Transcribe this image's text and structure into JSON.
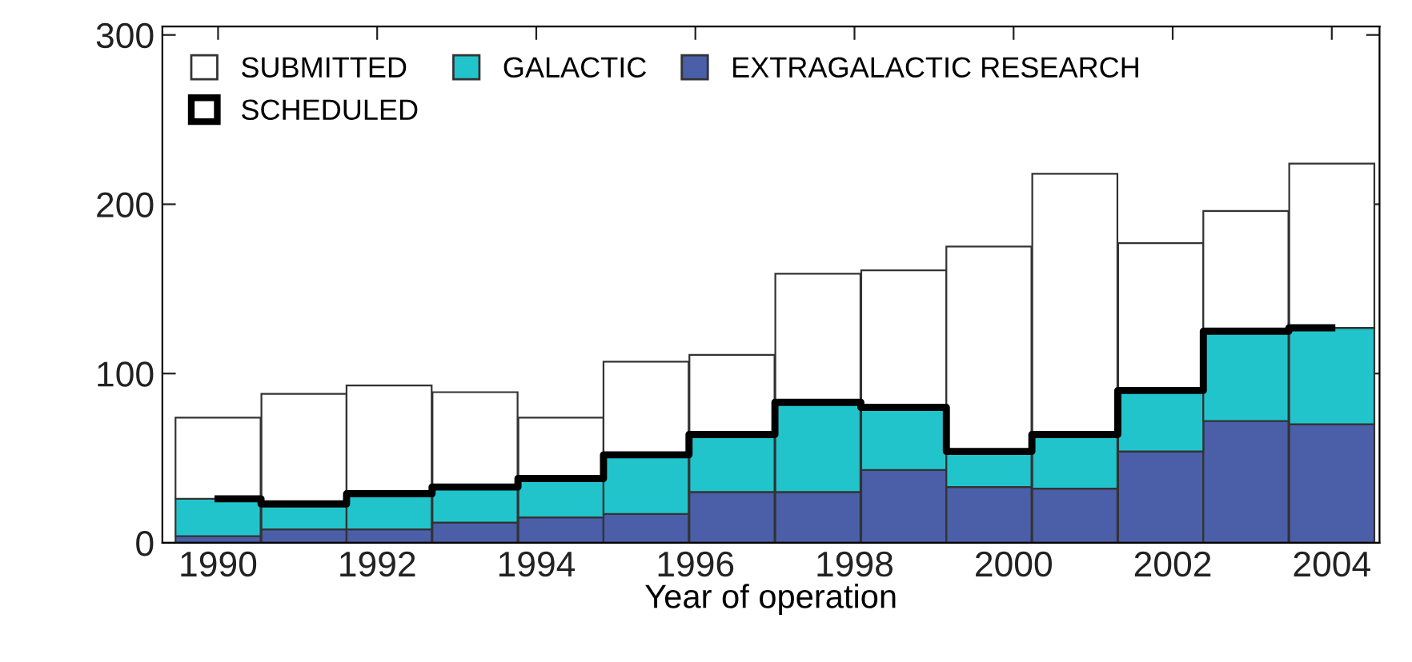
{
  "chart_data": {
    "type": "bar",
    "stacked": true,
    "xlabel": "Year of operation",
    "x": [
      1990.0,
      1991.08,
      1992.15,
      1993.23,
      1994.31,
      1995.38,
      1996.46,
      1997.54,
      1998.62,
      1999.69,
      2000.77,
      2001.85,
      2002.92,
      2004.0
    ],
    "series": [
      {
        "name": "EXTRAGALACTIC RESEARCH",
        "color": "#4a5fa8",
        "values": [
          4,
          8,
          8,
          12,
          15,
          17,
          30,
          30,
          43,
          33,
          32,
          54,
          72,
          70
        ]
      },
      {
        "name": "GALACTIC",
        "color": "#22c4cc",
        "values": [
          22,
          15,
          21,
          21,
          23,
          35,
          34,
          53,
          37,
          21,
          32,
          36,
          53,
          57
        ]
      },
      {
        "name": "SUBMITTED",
        "color": "#ffffff",
        "values": [
          48,
          65,
          64,
          56,
          36,
          55,
          47,
          76,
          81,
          121,
          154,
          87,
          71,
          97
        ]
      },
      {
        "name": "SCHEDULED",
        "type": "step",
        "color": "#000000",
        "values": [
          26,
          23,
          29,
          33,
          38,
          52,
          64,
          83,
          80,
          54,
          64,
          90,
          125,
          127
        ]
      }
    ],
    "xlim": [
      1989.3,
      2004.6
    ],
    "xticks": [
      1990,
      1992,
      1994,
      1996,
      1998,
      2000,
      2002,
      2004
    ],
    "ylim": [
      0,
      305
    ],
    "yticks": [
      0,
      100,
      200,
      300
    ],
    "grid": false,
    "legend": "top left"
  }
}
